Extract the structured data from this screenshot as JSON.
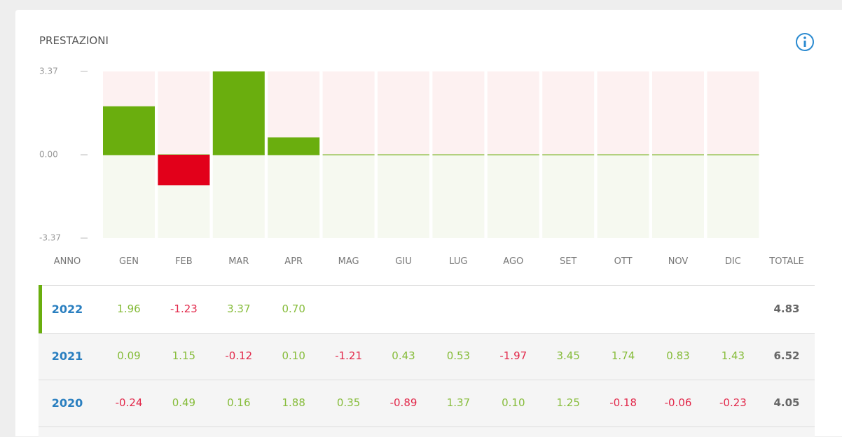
{
  "title": "PRESTAZIONI",
  "chart_data": {
    "type": "bar",
    "categories": [
      "GEN",
      "FEB",
      "MAR",
      "APR",
      "MAG",
      "GIU",
      "LUG",
      "AGO",
      "SET",
      "OTT",
      "NOV",
      "DIC"
    ],
    "values": [
      1.96,
      -1.23,
      3.37,
      0.7,
      null,
      null,
      null,
      null,
      null,
      null,
      null,
      null
    ],
    "ylim": [
      -3.37,
      3.37
    ],
    "yticks": [
      {
        "value": 3.37,
        "label": "3.37"
      },
      {
        "value": 0,
        "label": "0.00"
      },
      {
        "value": -3.37,
        "label": "-3.37"
      }
    ],
    "positive_color": "#6aae0e",
    "negative_color": "#e2001a"
  },
  "table": {
    "year_label": "ANNO",
    "total_label": "TOTALE",
    "rows": [
      {
        "year": "2022",
        "months": [
          "1.96",
          "-1.23",
          "3.37",
          "0.70",
          null,
          null,
          null,
          null,
          null,
          null,
          null,
          null
        ],
        "total": "4.83"
      },
      {
        "year": "2021",
        "months": [
          "0.09",
          "1.15",
          "-0.12",
          "0.10",
          "-1.21",
          "0.43",
          "0.53",
          "-1.97",
          "3.45",
          "1.74",
          "0.83",
          "1.43"
        ],
        "total": "6.52"
      },
      {
        "year": "2020",
        "months": [
          "-0.24",
          "0.49",
          "0.16",
          "1.88",
          "0.35",
          "-0.89",
          "1.37",
          "0.10",
          "1.25",
          "-0.18",
          "-0.06",
          "-0.23"
        ],
        "total": "4.05"
      }
    ]
  }
}
